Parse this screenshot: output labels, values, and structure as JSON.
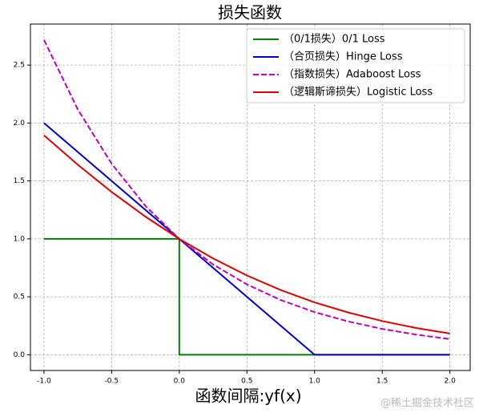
{
  "chart_data": {
    "type": "line",
    "title": "损失函数",
    "xlabel": "函数间隔:yf(x)",
    "watermark": "@稀土掘金技术社区",
    "xlim": [
      -1.1,
      2.15
    ],
    "ylim": [
      -0.136,
      2.854
    ],
    "xticks": [
      {
        "value": -1,
        "label": "-1.0"
      },
      {
        "value": -0.5,
        "label": "-0.5"
      },
      {
        "value": 0,
        "label": "0.0"
      },
      {
        "value": 0.5,
        "label": "0.5"
      },
      {
        "value": 1,
        "label": "1.0"
      },
      {
        "value": 1.5,
        "label": "1.5"
      },
      {
        "value": 2,
        "label": "2.0"
      }
    ],
    "yticks": [
      {
        "value": 0,
        "label": "0.0"
      },
      {
        "value": 0.5,
        "label": "0.5"
      },
      {
        "value": 1,
        "label": "1.0"
      },
      {
        "value": 1.5,
        "label": "1.5"
      },
      {
        "value": 2,
        "label": "2.0"
      },
      {
        "value": 2.5,
        "label": "2.5"
      }
    ],
    "grid": true,
    "legend": "upper right",
    "series": [
      {
        "name": "（0/1损失）0/1 Loss",
        "color": "#008000",
        "linestyle": "solid",
        "x": [
          -1,
          0,
          0,
          2
        ],
        "values": [
          1,
          1,
          0,
          0
        ]
      },
      {
        "name": "（合页损失）Hinge Loss",
        "color": "#0000cc",
        "linestyle": "solid",
        "x": [
          -1,
          1,
          2
        ],
        "values": [
          2,
          0,
          0
        ]
      },
      {
        "name": "（指数损失）Adaboost Loss",
        "color": "#bf00bf",
        "linestyle": "dashed",
        "x": [
          -1,
          -0.75,
          -0.5,
          -0.25,
          0,
          0.25,
          0.5,
          0.75,
          1,
          1.25,
          1.5,
          1.75,
          2
        ],
        "values": [
          2.718,
          2.117,
          1.649,
          1.284,
          1,
          0.779,
          0.607,
          0.472,
          0.368,
          0.287,
          0.223,
          0.174,
          0.135
        ]
      },
      {
        "name": "（逻辑斯谛损失）Logistic Loss",
        "color": "#e00000",
        "linestyle": "solid",
        "x": [
          -1,
          -0.75,
          -0.5,
          -0.25,
          0,
          0.25,
          0.5,
          0.75,
          1,
          1.25,
          1.5,
          1.75,
          2
        ],
        "values": [
          1.894,
          1.64,
          1.405,
          1.192,
          1,
          0.831,
          0.684,
          0.558,
          0.452,
          0.364,
          0.291,
          0.231,
          0.183
        ]
      }
    ]
  }
}
